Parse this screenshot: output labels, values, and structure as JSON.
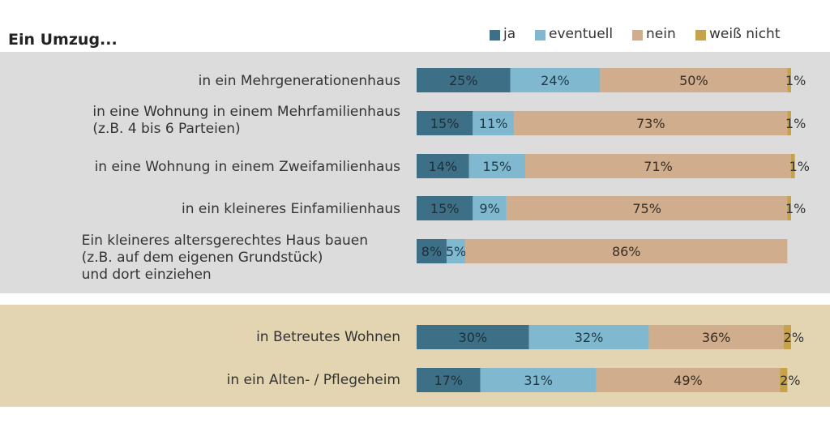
{
  "chart_data": {
    "type": "bar",
    "orientation": "horizontal",
    "stacked": true,
    "title": "Ein Umzug...",
    "legend_position": "top-right",
    "series": [
      {
        "name": "ja",
        "color": "#3d6f86"
      },
      {
        "name": "eventuell",
        "color": "#80b9cf"
      },
      {
        "name": "nein",
        "color": "#cfad8d"
      },
      {
        "name": "weiß nicht",
        "color": "#c6a24a"
      }
    ],
    "groups": [
      {
        "background": "#dcdcdc",
        "rows": [
          {
            "label": [
              "in ein Mehrgenerationenhaus"
            ],
            "values": [
              25,
              24,
              50,
              1
            ],
            "value_labels": [
              "25%",
              "24%",
              "50%",
              "1%"
            ]
          },
          {
            "label": [
              "in eine Wohnung in einem Mehrfamilienhaus",
              "(z.B. 4 bis 6 Parteien)"
            ],
            "values": [
              15,
              11,
              73,
              1
            ],
            "value_labels": [
              "15%",
              "11%",
              "73%",
              "1%"
            ]
          },
          {
            "label": [
              "in eine Wohnung in einem Zweifamilienhaus"
            ],
            "values": [
              14,
              15,
              71,
              1
            ],
            "value_labels": [
              "14%",
              "15%",
              "71%",
              "1%"
            ]
          },
          {
            "label": [
              "in ein kleineres Einfamilienhaus"
            ],
            "values": [
              15,
              9,
              75,
              1
            ],
            "value_labels": [
              "15%",
              "9%",
              "75%",
              "1%"
            ]
          },
          {
            "label": [
              "Ein kleineres altersgerechtes Haus bauen",
              "(z.B. auf dem eigenen Grundstück)",
              "und dort einziehen"
            ],
            "values": [
              8,
              5,
              86,
              0
            ],
            "value_labels": [
              "8%",
              "5%",
              "86%",
              ""
            ]
          }
        ]
      },
      {
        "background": "#e3d5b1",
        "rows": [
          {
            "label": [
              "in Betreutes Wohnen"
            ],
            "values": [
              30,
              32,
              36,
              2
            ],
            "value_labels": [
              "30%",
              "32%",
              "36%",
              "2%"
            ]
          },
          {
            "label": [
              "in ein Alten- / Pflegeheim"
            ],
            "values": [
              17,
              31,
              49,
              2
            ],
            "value_labels": [
              "17%",
              "31%",
              "49%",
              "2%"
            ]
          }
        ]
      }
    ]
  }
}
